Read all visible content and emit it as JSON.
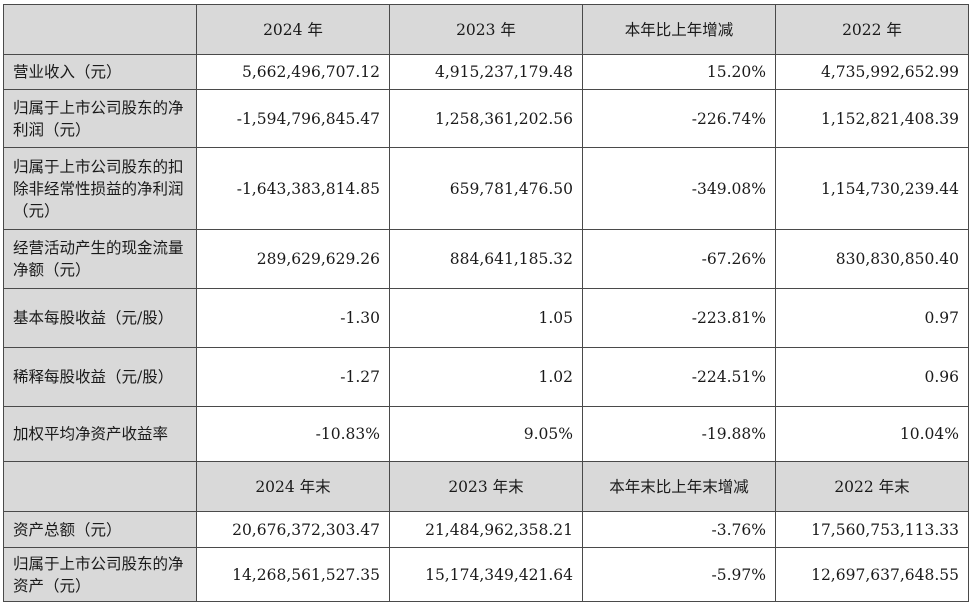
{
  "table": {
    "header1": [
      "",
      "2024 年",
      "2023 年",
      "本年比上年增减",
      "2022 年"
    ],
    "rows1": [
      {
        "label": "营业收入（元）",
        "values": [
          "5,662,496,707.12",
          "4,915,237,179.48",
          "15.20%",
          "4,735,992,652.99"
        ]
      },
      {
        "label": "归属于上市公司股东的净利润（元）",
        "values": [
          "-1,594,796,845.47",
          "1,258,361,202.56",
          "-226.74%",
          "1,152,821,408.39"
        ]
      },
      {
        "label": "归属于上市公司股东的扣除非经常性损益的净利润（元）",
        "values": [
          "-1,643,383,814.85",
          "659,781,476.50",
          "-349.08%",
          "1,154,730,239.44"
        ]
      },
      {
        "label": "经营活动产生的现金流量净额（元）",
        "values": [
          "289,629,629.26",
          "884,641,185.32",
          "-67.26%",
          "830,830,850.40"
        ]
      },
      {
        "label": "基本每股收益（元/股）",
        "values": [
          "-1.30",
          "1.05",
          "-223.81%",
          "0.97"
        ]
      },
      {
        "label": "稀释每股收益（元/股）",
        "values": [
          "-1.27",
          "1.02",
          "-224.51%",
          "0.96"
        ]
      },
      {
        "label": "加权平均净资产收益率",
        "values": [
          "-10.83%",
          "9.05%",
          "-19.88%",
          "10.04%"
        ]
      }
    ],
    "header2": [
      "",
      "2024 年末",
      "2023 年末",
      "本年末比上年末增减",
      "2022 年末"
    ],
    "rows2": [
      {
        "label": "资产总额（元）",
        "values": [
          "20,676,372,303.47",
          "21,484,962,358.21",
          "-3.76%",
          "17,560,753,113.33"
        ]
      },
      {
        "label": "归属于上市公司股东的净资产（元）",
        "values": [
          "14,268,561,527.35",
          "15,174,349,421.64",
          "-5.97%",
          "12,697,637,648.55"
        ]
      }
    ]
  }
}
